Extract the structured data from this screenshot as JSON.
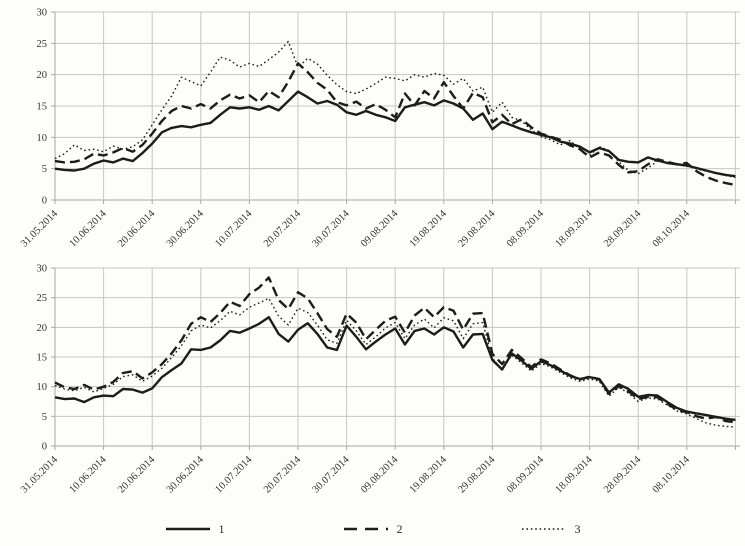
{
  "legend": {
    "entries": [
      {
        "label": "1",
        "style": "solid"
      },
      {
        "label": "2",
        "style": "dashed"
      },
      {
        "label": "3",
        "style": "dotted"
      }
    ]
  },
  "colors": {
    "line": "#1c1c1c",
    "grid": "#c6c6c6",
    "axis": "#a8a8a8",
    "text": "#333333"
  },
  "chart_data": [
    {
      "type": "line",
      "position": "top",
      "x_tick_labels": [
        "31.05.2014",
        "10.06.2014",
        "20.06.2014",
        "30.06.2014",
        "10.07.2014",
        "20.07.2014",
        "30.07.2014",
        "09.08.2014",
        "19.08.2014",
        "29.08.2014",
        "08.09.2014",
        "18.09.2014",
        "28.09.2014",
        "08.10.2014"
      ],
      "x_tick_interval_days": 10,
      "x_sample_interval_days": 2,
      "x_total_days": 140,
      "ylim": [
        0,
        30
      ],
      "yticks": [
        0,
        5,
        10,
        15,
        20,
        25,
        30
      ],
      "grid": true,
      "legend_position": "below-figure",
      "series": [
        {
          "name": "1",
          "line_style": "solid",
          "values": [
            5.0,
            4.8,
            4.7,
            5.0,
            5.8,
            6.3,
            6.0,
            6.6,
            6.2,
            7.5,
            9.0,
            10.8,
            11.5,
            11.8,
            11.6,
            12.0,
            12.3,
            13.6,
            14.8,
            14.6,
            14.8,
            14.4,
            15.0,
            14.3,
            15.8,
            17.3,
            16.4,
            15.4,
            15.8,
            15.2,
            14.0,
            13.6,
            14.2,
            13.6,
            13.2,
            12.6,
            14.8,
            15.2,
            15.6,
            15.1,
            15.9,
            15.4,
            14.6,
            12.8,
            13.8,
            11.3,
            12.5,
            11.9,
            11.3,
            10.8,
            10.4,
            10.0,
            9.3,
            9.0,
            8.5,
            7.6,
            8.3,
            7.8,
            6.4,
            6.1,
            6.0,
            6.8,
            6.3,
            5.9,
            5.7,
            5.5,
            5.1,
            4.7,
            4.3,
            4.0,
            3.8
          ]
        },
        {
          "name": "2",
          "line_style": "dashed",
          "values": [
            6.2,
            6.0,
            6.1,
            6.5,
            7.4,
            7.1,
            7.6,
            8.3,
            7.7,
            8.8,
            10.6,
            12.6,
            14.2,
            15.0,
            14.6,
            15.3,
            14.6,
            15.9,
            16.8,
            16.2,
            16.7,
            15.6,
            17.4,
            16.4,
            18.9,
            21.8,
            20.4,
            18.7,
            17.6,
            15.6,
            15.1,
            15.7,
            14.6,
            15.3,
            14.4,
            13.2,
            17.0,
            15.1,
            17.4,
            16.2,
            18.8,
            16.6,
            14.6,
            17.1,
            16.4,
            12.4,
            13.6,
            12.1,
            12.9,
            11.6,
            10.6,
            10.1,
            9.6,
            8.7,
            8.1,
            6.8,
            7.6,
            7.1,
            5.6,
            4.4,
            4.6,
            5.7,
            6.5,
            6.1,
            5.7,
            5.9,
            4.6,
            3.7,
            3.1,
            2.7,
            2.4
          ]
        },
        {
          "name": "3",
          "line_style": "dotted",
          "values": [
            6.6,
            7.4,
            8.8,
            7.9,
            8.1,
            7.7,
            8.6,
            8.1,
            8.5,
            9.6,
            12.0,
            14.4,
            16.6,
            19.6,
            18.9,
            18.2,
            20.4,
            22.8,
            22.3,
            21.2,
            21.8,
            21.3,
            22.4,
            23.6,
            25.3,
            21.2,
            22.6,
            21.7,
            19.9,
            18.4,
            17.3,
            17.0,
            17.7,
            18.6,
            19.6,
            19.4,
            19.0,
            20.0,
            19.6,
            20.2,
            19.9,
            18.5,
            19.4,
            17.4,
            18.0,
            14.0,
            15.6,
            13.2,
            12.6,
            11.2,
            10.1,
            9.6,
            8.8,
            9.5,
            8.0,
            7.1,
            8.5,
            7.9,
            6.1,
            4.7,
            4.2,
            5.1,
            6.2,
            6.0,
            5.7,
            5.4,
            5.0,
            4.6,
            4.3,
            3.9,
            3.6
          ]
        }
      ]
    },
    {
      "type": "line",
      "position": "bottom",
      "x_tick_labels": [
        "31.05.2014",
        "10.06.2014",
        "20.06.2014",
        "30.06.2014",
        "10.07.2014",
        "20.07.2014",
        "30.07.2014",
        "09.08.2014",
        "19.08.2014",
        "29.08.2014",
        "08.09.2014",
        "18.09.2014",
        "28.09.2014",
        "08.10.2014"
      ],
      "x_tick_interval_days": 10,
      "x_sample_interval_days": 2,
      "x_total_days": 140,
      "ylim": [
        0,
        30
      ],
      "yticks": [
        0,
        5,
        10,
        15,
        20,
        25,
        30
      ],
      "grid": true,
      "series": [
        {
          "name": "1",
          "line_style": "solid",
          "values": [
            8.2,
            7.9,
            8.0,
            7.4,
            8.2,
            8.5,
            8.4,
            9.6,
            9.5,
            9.0,
            9.7,
            11.6,
            12.8,
            13.9,
            16.3,
            16.2,
            16.6,
            17.8,
            19.4,
            19.1,
            19.8,
            20.6,
            21.7,
            18.9,
            17.6,
            19.6,
            20.7,
            18.9,
            16.6,
            16.2,
            20.3,
            18.4,
            16.3,
            17.6,
            18.8,
            19.8,
            17.1,
            19.4,
            19.8,
            18.8,
            20.0,
            19.3,
            16.6,
            18.8,
            18.9,
            14.5,
            12.9,
            15.6,
            14.4,
            13.0,
            14.3,
            13.6,
            12.7,
            11.8,
            11.3,
            11.6,
            11.3,
            9.0,
            10.4,
            9.6,
            8.3,
            8.6,
            8.5,
            7.4,
            6.4,
            5.8,
            5.5,
            5.2,
            4.9,
            4.6,
            4.4
          ]
        },
        {
          "name": "2",
          "line_style": "dashed",
          "values": [
            10.7,
            9.9,
            9.6,
            10.3,
            9.5,
            10.0,
            10.8,
            12.3,
            12.6,
            11.4,
            12.4,
            13.8,
            15.6,
            17.8,
            20.6,
            21.7,
            20.9,
            22.4,
            24.3,
            23.6,
            25.6,
            26.7,
            28.4,
            24.6,
            23.1,
            25.9,
            24.9,
            22.4,
            19.7,
            18.4,
            22.3,
            20.8,
            18.0,
            19.6,
            21.1,
            21.8,
            19.1,
            22.0,
            23.3,
            21.7,
            23.4,
            22.8,
            19.6,
            22.3,
            22.4,
            15.5,
            13.8,
            16.2,
            14.8,
            13.3,
            14.6,
            13.9,
            12.9,
            11.9,
            11.2,
            11.7,
            11.2,
            8.8,
            10.1,
            9.2,
            7.9,
            8.3,
            8.2,
            7.1,
            6.1,
            5.7,
            5.0,
            4.6,
            4.9,
            4.2,
            4.0
          ]
        },
        {
          "name": "3",
          "line_style": "dotted",
          "values": [
            10.2,
            9.6,
            9.3,
            9.9,
            9.1,
            9.7,
            10.4,
            11.7,
            12.0,
            10.9,
            11.8,
            13.1,
            14.9,
            16.9,
            19.4,
            20.4,
            19.9,
            21.1,
            22.7,
            22.1,
            23.4,
            24.1,
            24.9,
            21.9,
            20.4,
            23.2,
            22.5,
            20.4,
            17.9,
            17.3,
            21.2,
            19.4,
            17.1,
            18.4,
            19.9,
            20.8,
            18.1,
            20.4,
            21.4,
            19.9,
            21.6,
            21.1,
            18.1,
            20.6,
            20.8,
            14.8,
            12.9,
            15.3,
            14.0,
            12.6,
            13.9,
            13.3,
            12.4,
            11.5,
            10.9,
            11.3,
            10.9,
            8.4,
            9.9,
            8.9,
            7.5,
            8.1,
            7.9,
            6.9,
            5.9,
            5.4,
            4.6,
            3.9,
            3.5,
            3.3,
            3.2
          ]
        }
      ]
    }
  ]
}
